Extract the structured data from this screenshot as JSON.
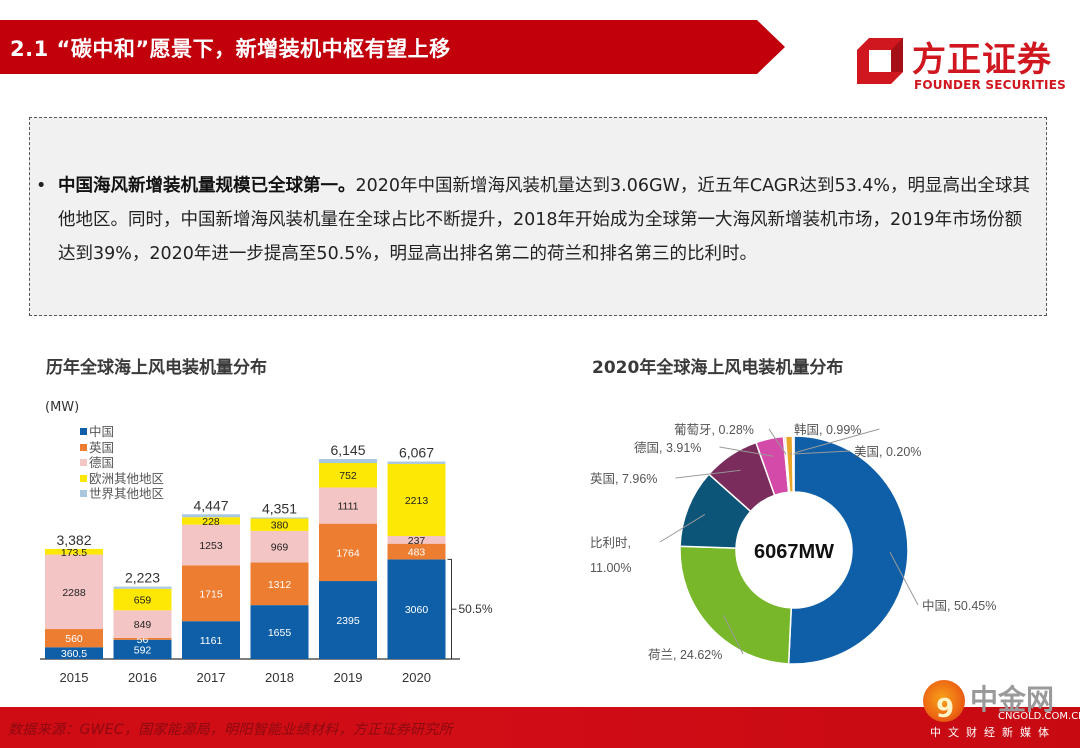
{
  "header": {
    "title": "2.1 “碳中和”愿景下，新增装机中枢有望上移",
    "logo_cn": "方正证券",
    "logo_en": "FOUNDER SECURITIES"
  },
  "summary": {
    "bullet": "•",
    "lead": "中国海风新增装机量规模已全球第一。",
    "body": "2020年中国新增海风装机量达到3.06GW，近五年CAGR达到53.4%，明显高出全球其他地区。同时，中国新增海风装机量在全球占比不断提升，2018年开始成为全球第一大海风新增装机市场，2019年市场份额达到39%，2020年进一步提高至50.5%，明显高出排名第二的荷兰和排名第三的比利时。"
  },
  "footer": {
    "source": "数据来源：GWEC，国家能源局，明阳智能业绩材料，方正证券研究所"
  },
  "watermark": {
    "name": "中金网",
    "url": "CNGOLD.COM.CN",
    "slogan": "中文财经新媒体"
  },
  "chart_data": [
    {
      "type": "bar",
      "stacked": true,
      "title": "历年全球海上风电装机量分布",
      "ylabel": "(MW)",
      "xlabel": "",
      "categories": [
        "2015",
        "2016",
        "2017",
        "2018",
        "2019",
        "2020"
      ],
      "totals": [
        "3,382",
        "2,223",
        "4,447",
        "4,351",
        "6,145",
        "6,067"
      ],
      "legend_position": "top-left",
      "series": [
        {
          "name": "中国",
          "color": "#0e5fa8",
          "label_color": "#ffffff",
          "values": [
            360.5,
            592,
            1161,
            1655,
            2395,
            3060
          ],
          "labels": [
            "360.5",
            "592",
            "1161",
            "1655",
            "2395",
            "3060"
          ]
        },
        {
          "name": "英国",
          "color": "#ed7d31",
          "label_color": "#ffffff",
          "values": [
            560,
            56,
            1715,
            1312,
            1764,
            483
          ],
          "labels": [
            "560",
            "56",
            "1715",
            "1312",
            "1764",
            "483"
          ]
        },
        {
          "name": "德国",
          "color": "#f4c5c5",
          "label_color": "#222222",
          "values": [
            2288,
            849,
            1253,
            969,
            1111,
            237
          ],
          "labels": [
            "2288",
            "849",
            "1253",
            "969",
            "1111",
            "237"
          ]
        },
        {
          "name": "欧洲其他地区",
          "color": "#fde805",
          "label_color": "#222222",
          "values": [
            173.5,
            659,
            228,
            380,
            752,
            2213
          ],
          "labels": [
            "173.5",
            "659",
            "228",
            "380",
            "752",
            "2213"
          ]
        },
        {
          "name": "世界其他地区",
          "color": "#a9c8e0",
          "label_color": "#222222",
          "values": [
            0,
            67,
            90,
            35,
            123,
            74
          ],
          "labels": [
            "",
            "",
            "",
            "",
            "",
            ""
          ]
        }
      ],
      "annotation": {
        "text": "50.5%",
        "category": "2020",
        "series": "中国"
      },
      "ylim": [
        0,
        6500
      ],
      "grid": false
    },
    {
      "type": "pie",
      "style": "donut",
      "title": "2020年全球海上风电装机量分布",
      "center_label": "6067MW",
      "slices": [
        {
          "name": "中国",
          "value": 50.45,
          "label": "中国, 50.45%",
          "color": "#0e5fa8"
        },
        {
          "name": "荷兰",
          "value": 24.62,
          "label": "荷兰, 24.62%",
          "color": "#78b72a"
        },
        {
          "name": "比利时",
          "value": 11.0,
          "label": "比利时, 11.00%",
          "color": "#0c5478"
        },
        {
          "name": "英国",
          "value": 7.96,
          "label": "英国, 7.96%",
          "color": "#7a2d5c"
        },
        {
          "name": "德国",
          "value": 3.91,
          "label": "德国, 3.91%",
          "color": "#d44aa8"
        },
        {
          "name": "葡萄牙",
          "value": 0.28,
          "label": "葡萄牙, 0.28%",
          "color": "#f2b6d8"
        },
        {
          "name": "韩国",
          "value": 0.99,
          "label": "韩国, 0.99%",
          "color": "#e8a72a"
        },
        {
          "name": "美国",
          "value": 0.2,
          "label": "美国, 0.20%",
          "color": "#f4d36a"
        }
      ]
    }
  ]
}
